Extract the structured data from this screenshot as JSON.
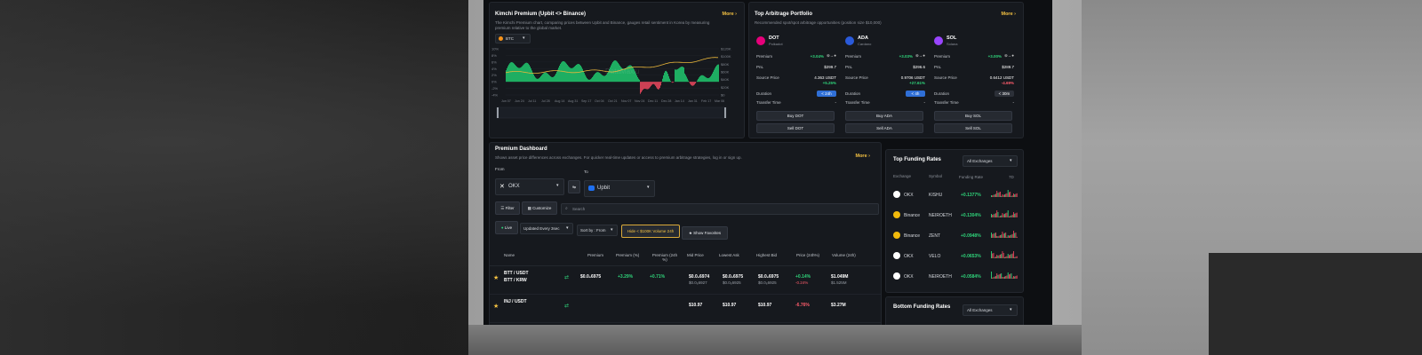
{
  "kimchi": {
    "title": "Kimchi Premium (Upbit <> Binance)",
    "desc1": "The Kimchi Premium chart, comparing prices between Upbit and Binance, gauges retail sentiment in Korea by measuring",
    "desc2": "premium relative to the global market.",
    "more": "More",
    "coin": "BTC",
    "watermark": "DataMaxiu",
    "y_left": [
      "10%",
      "8%",
      "6%",
      "4%",
      "2%",
      "0%",
      "-2%",
      "-4%"
    ],
    "y_right": [
      "$120K",
      "$100K",
      "$80K",
      "$60K",
      "$40K",
      "$20K",
      "$0"
    ],
    "x_ticks": [
      "Jun 07",
      "Jun 24",
      "Jul 11",
      "Jul 28",
      "Aug 14",
      "Aug 31",
      "Sep 17",
      "Oct 04",
      "Oct 21",
      "Nov 07",
      "Nov 24",
      "Dec 11",
      "Dec 28",
      "Jan 14",
      "Jan 31",
      "Feb 17",
      "Mar 06"
    ],
    "colors": {
      "premium_pos": "#1fbf6a",
      "premium_neg": "#e0455a",
      "price_line": "#e8b53a"
    }
  },
  "portfolio": {
    "title": "Top Arbitrage Portfolio",
    "desc": "Recommended spot/spot arbitrage opportunities (position size $10,000)",
    "more": "More",
    "labels": {
      "premium": "Premium",
      "pnl": "PnL",
      "source_price": "Source Price",
      "duration": "Duration",
      "transfer_time": "Transfer Time"
    },
    "cards": [
      {
        "symbol": "DOT",
        "name": "Polkadot",
        "premium": "+3.04%",
        "pnl": "$299.7",
        "source_price": "4.363 USDT",
        "change": "+5.25%",
        "change_dir": "up",
        "duration": "< 24h",
        "transfer": "-",
        "buy": "Buy DOT",
        "sell": "Sell DOT",
        "icon_color": "#e6007a"
      },
      {
        "symbol": "ADA",
        "name": "Cardano",
        "premium": "+3.03%",
        "pnl": "$296.6",
        "source_price": "0.9706 USDT",
        "change": "+27.61%",
        "change_dir": "up",
        "duration": "< 4h",
        "transfer": "-",
        "buy": "Buy ADA",
        "sell": "Sell ADA",
        "icon_color": "#2a5ada"
      },
      {
        "symbol": "SOL",
        "name": "Solana",
        "premium": "+3.00%",
        "pnl": "$289.7",
        "source_price": "0.6412 USDT",
        "change": "-4.69%",
        "change_dir": "down",
        "duration": "< 30m",
        "transfer": "-",
        "buy": "Buy SOL",
        "sell": "Sell SOL",
        "icon_color": "#9945ff"
      }
    ]
  },
  "dashboard": {
    "title": "Premium Dashboard",
    "desc": "Shows asset price differences across exchanges. For quicker real-time updates or access to premium arbitrage strategies, log in or sign up.",
    "more": "More",
    "from_label": "From",
    "to_label": "To",
    "from_exchange": "OKX",
    "to_exchange": "Upbit",
    "filter": "Filter",
    "customize": "Customize",
    "search_placeholder": "Search",
    "live": "Live",
    "updated": "Updated Every 3sec",
    "sort": "Sort by : From",
    "hide_volume": "Hide < $100K Volume 24h",
    "show_favorites": "Show Favorites",
    "columns": [
      "Name",
      "Premium",
      "Premium (%)",
      "Premium (24h %)",
      "Mid Price",
      "Lowest Ask",
      "Highest Bid",
      "Price (24h%)",
      "Volume (24h)"
    ],
    "rows": [
      {
        "pair1": "BTT / USDT",
        "pair2": "BTT / KRW",
        "premium": "$0.0₆6975",
        "premium_pct": "+3.29%",
        "premium_24h": "+0.71%",
        "mid_price": "$0.0₆6974",
        "mid_price2": "$0.0₆6927",
        "lowest_ask": "$0.0₆6975",
        "lowest_ask2": "$0.0₆6925",
        "highest_bid": "$0.0₆6975",
        "highest_bid2": "$0.0₆6925",
        "price_24h": "+0.14%",
        "price_24h2": "-0.24%",
        "volume": "$1.049M",
        "volume2": "$1.525M"
      },
      {
        "pair1": "INJ / USDT",
        "pair2": "",
        "premium": "",
        "premium_pct": "",
        "premium_24h": "",
        "mid_price": "$10.97",
        "mid_price2": "",
        "lowest_ask": "$10.97",
        "lowest_ask2": "",
        "highest_bid": "$10.97",
        "highest_bid2": "",
        "price_24h": "-6.76%",
        "price_24h2": "",
        "volume": "$3.27M",
        "volume2": ""
      }
    ]
  },
  "funding": {
    "title": "Top Funding Rates",
    "filter": "All Exchanges",
    "columns": [
      "Exchange",
      "Symbol",
      "Funding Rate",
      "7D"
    ],
    "rows": [
      {
        "exchange": "OKX",
        "symbol": "KISHU",
        "rate": "+0.1377%",
        "color": "#ffffff"
      },
      {
        "exchange": "Binance",
        "symbol": "NEIROETH",
        "rate": "+0.1304%",
        "color": "#f0b90b"
      },
      {
        "exchange": "Binance",
        "symbol": "ZENT",
        "rate": "+0.0948%",
        "color": "#f0b90b"
      },
      {
        "exchange": "OKX",
        "symbol": "VELO",
        "rate": "+0.0653%",
        "color": "#ffffff"
      },
      {
        "exchange": "OKX",
        "symbol": "NEIROETH",
        "rate": "+0.0584%",
        "color": "#ffffff"
      }
    ]
  },
  "bottom_funding": {
    "title": "Bottom Funding Rates",
    "filter": "All Exchanges"
  }
}
